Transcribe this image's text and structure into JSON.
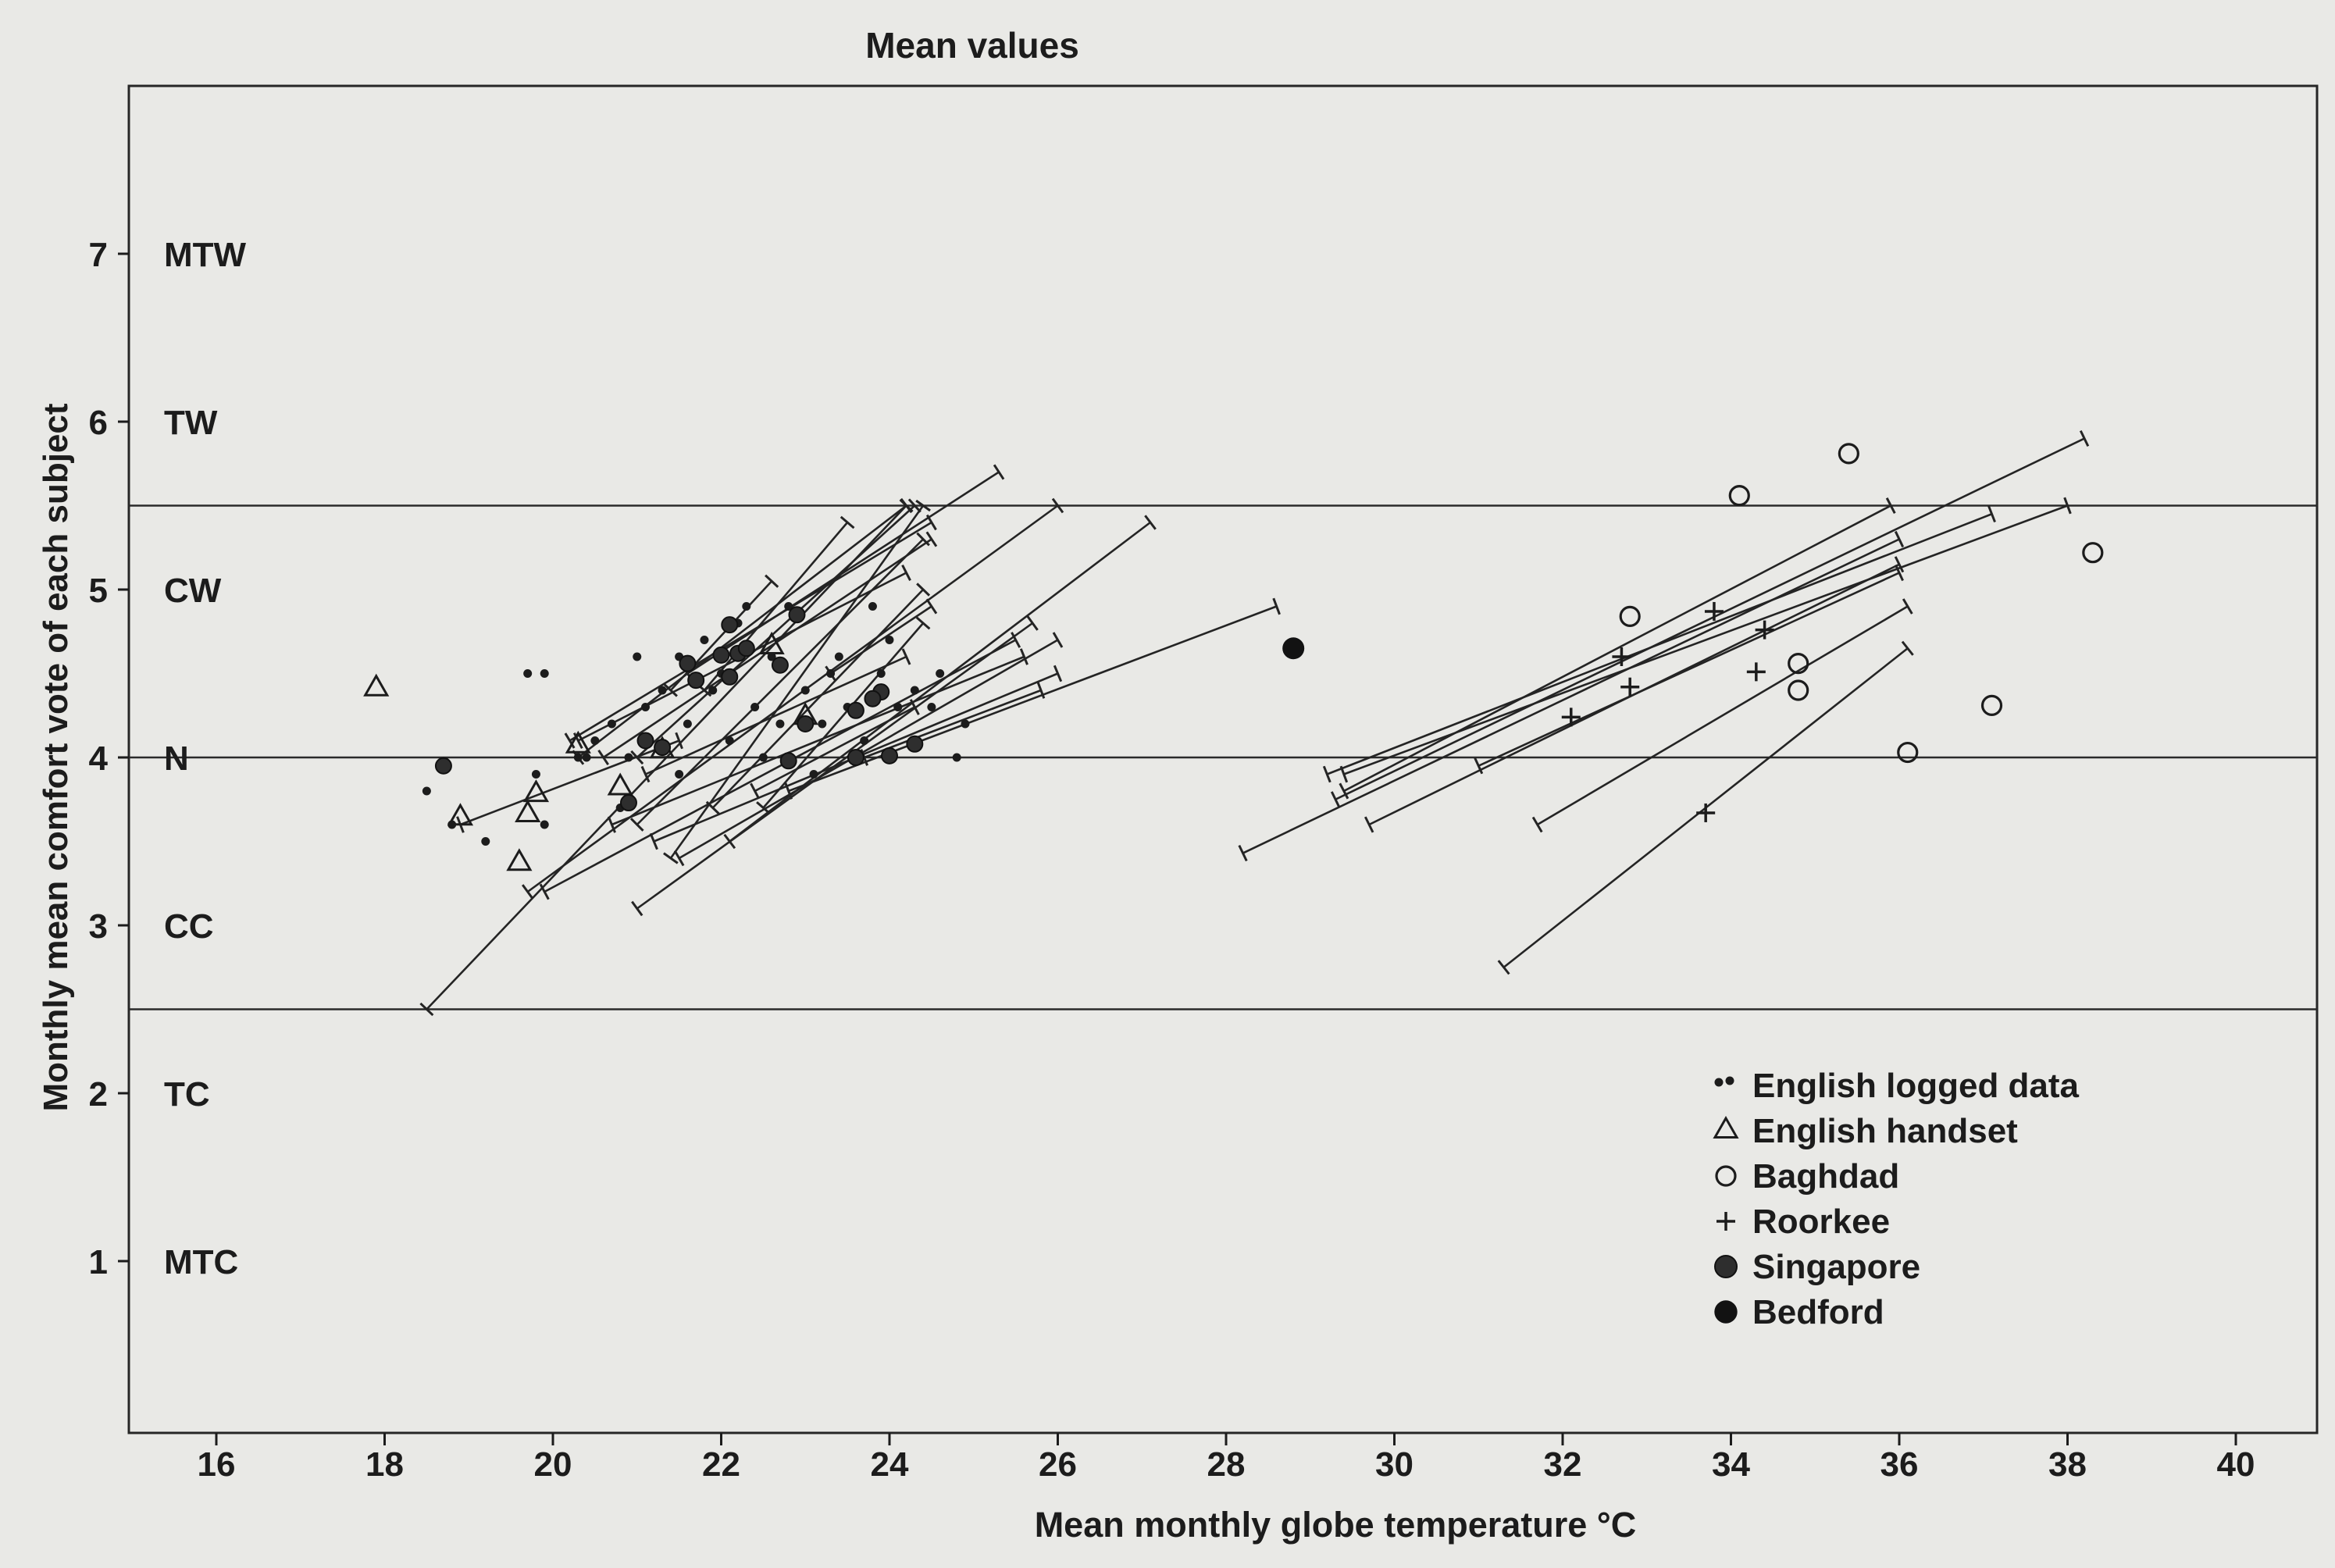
{
  "chart_data": {
    "type": "scatter",
    "title": "Mean values",
    "xlabel": "Mean monthly globe temperature °C",
    "ylabel": "Monthly mean comfort vote of each subject",
    "xlim": [
      15,
      41
    ],
    "ylim": [
      0,
      8
    ],
    "x_ticks": [
      16,
      18,
      20,
      22,
      24,
      26,
      28,
      30,
      32,
      34,
      36,
      38,
      40
    ],
    "y_ticks": [
      1,
      2,
      3,
      4,
      5,
      6,
      7
    ],
    "y_category_labels": [
      {
        "y": 7,
        "label": "MTW"
      },
      {
        "y": 6,
        "label": "TW"
      },
      {
        "y": 5,
        "label": "CW"
      },
      {
        "y": 4,
        "label": "N"
      },
      {
        "y": 3,
        "label": "CC"
      },
      {
        "y": 2,
        "label": "TC"
      },
      {
        "y": 1,
        "label": "MTC"
      }
    ],
    "reference_lines": [
      5.5,
      4,
      2.5
    ],
    "legend_position": "bottom-right",
    "legend": [
      {
        "marker": "dot",
        "label": "English logged data"
      },
      {
        "marker": "triangle",
        "label": "English handset"
      },
      {
        "marker": "circle",
        "label": "Baghdad"
      },
      {
        "marker": "plus",
        "label": "Roorkee"
      },
      {
        "marker": "singapore",
        "label": "Singapore"
      },
      {
        "marker": "bedford",
        "label": "Bedford"
      }
    ],
    "series": [
      {
        "name": "English logged data",
        "marker": "dot",
        "points": [
          [
            18.5,
            3.8
          ],
          [
            18.8,
            3.6
          ],
          [
            19.2,
            3.5
          ],
          [
            19.9,
            3.6
          ],
          [
            19.8,
            3.9
          ],
          [
            19.7,
            4.5
          ],
          [
            19.9,
            4.5
          ],
          [
            20.3,
            4.0
          ],
          [
            20.5,
            4.1
          ],
          [
            20.7,
            4.2
          ],
          [
            20.9,
            4.0
          ],
          [
            21.1,
            4.3
          ],
          [
            21.3,
            4.4
          ],
          [
            21.5,
            4.6
          ],
          [
            21.6,
            4.2
          ],
          [
            21.8,
            4.7
          ],
          [
            22.0,
            4.5
          ],
          [
            22.2,
            4.8
          ],
          [
            22.4,
            4.3
          ],
          [
            22.6,
            4.6
          ],
          [
            22.8,
            4.9
          ],
          [
            23.0,
            4.4
          ],
          [
            23.2,
            4.2
          ],
          [
            23.4,
            4.6
          ],
          [
            23.5,
            4.3
          ],
          [
            23.7,
            4.1
          ],
          [
            23.9,
            4.5
          ],
          [
            24.1,
            4.3
          ],
          [
            24.3,
            4.4
          ],
          [
            24.5,
            4.3
          ],
          [
            24.6,
            4.5
          ],
          [
            24.8,
            4.0
          ],
          [
            24.9,
            4.2
          ],
          [
            22.1,
            4.1
          ],
          [
            22.5,
            4.0
          ],
          [
            23.1,
            3.9
          ],
          [
            21.5,
            3.9
          ],
          [
            20.8,
            3.7
          ],
          [
            21.0,
            4.6
          ],
          [
            22.3,
            4.9
          ],
          [
            23.8,
            4.9
          ],
          [
            24.0,
            4.7
          ],
          [
            21.9,
            4.4
          ],
          [
            22.7,
            4.2
          ],
          [
            23.3,
            4.5
          ],
          [
            20.4,
            4.0
          ]
        ]
      },
      {
        "name": "English handset",
        "marker": "triangle",
        "points": [
          [
            17.9,
            4.42
          ],
          [
            18.9,
            3.65
          ],
          [
            19.6,
            3.38
          ],
          [
            19.7,
            3.67
          ],
          [
            19.8,
            3.79
          ],
          [
            20.3,
            4.08
          ],
          [
            20.8,
            3.83
          ],
          [
            21.3,
            4.05
          ],
          [
            22.6,
            4.67
          ],
          [
            23.0,
            4.25
          ]
        ]
      },
      {
        "name": "Baghdad",
        "marker": "circle",
        "points": [
          [
            32.8,
            4.84
          ],
          [
            34.1,
            5.56
          ],
          [
            35.4,
            5.81
          ],
          [
            38.3,
            5.22
          ],
          [
            34.8,
            4.56
          ],
          [
            34.8,
            4.4
          ],
          [
            37.1,
            4.31
          ],
          [
            36.1,
            4.03
          ]
        ]
      },
      {
        "name": "Roorkee",
        "marker": "plus",
        "points": [
          [
            32.7,
            4.6
          ],
          [
            33.8,
            4.87
          ],
          [
            32.8,
            4.42
          ],
          [
            32.1,
            4.24
          ],
          [
            34.4,
            4.76
          ],
          [
            34.3,
            4.51
          ],
          [
            33.7,
            3.67
          ]
        ]
      },
      {
        "name": "Singapore",
        "marker": "singapore",
        "points": [
          [
            18.7,
            3.95
          ],
          [
            20.9,
            3.73
          ],
          [
            21.1,
            4.1
          ],
          [
            21.3,
            4.06
          ],
          [
            21.6,
            4.56
          ],
          [
            22.0,
            4.61
          ],
          [
            22.2,
            4.62
          ],
          [
            22.3,
            4.65
          ],
          [
            22.1,
            4.48
          ],
          [
            22.7,
            4.55
          ],
          [
            22.8,
            3.98
          ],
          [
            22.9,
            4.85
          ],
          [
            23.0,
            4.2
          ],
          [
            23.6,
            4.28
          ],
          [
            23.9,
            4.39
          ],
          [
            23.6,
            4.0
          ],
          [
            24.0,
            4.01
          ],
          [
            24.3,
            4.08
          ],
          [
            21.7,
            4.46
          ],
          [
            22.1,
            4.79
          ],
          [
            23.8,
            4.35
          ]
        ]
      },
      {
        "name": "Bedford",
        "marker": "bedford",
        "points": [
          [
            28.8,
            4.65
          ]
        ]
      }
    ],
    "regression_segments": [
      [
        18.5,
        2.5,
        24.2,
        5.5
      ],
      [
        19.7,
        3.2,
        26.0,
        5.5
      ],
      [
        19.9,
        3.2,
        25.5,
        4.7
      ],
      [
        20.7,
        3.6,
        25.6,
        4.6
      ],
      [
        21.2,
        3.5,
        26.0,
        4.5
      ],
      [
        21.0,
        3.1,
        25.7,
        4.8
      ],
      [
        21.5,
        3.4,
        26.0,
        4.7
      ],
      [
        22.1,
        3.5,
        27.1,
        5.4
      ],
      [
        22.8,
        3.8,
        28.6,
        4.9
      ],
      [
        21.4,
        3.4,
        24.4,
        5.5
      ],
      [
        20.3,
        4.0,
        24.2,
        5.5
      ],
      [
        21.0,
        4.0,
        24.3,
        5.5
      ],
      [
        21.8,
        4.4,
        23.5,
        5.4
      ],
      [
        20.2,
        4.1,
        24.5,
        5.4
      ],
      [
        21.0,
        3.6,
        24.4,
        5.3
      ],
      [
        21.6,
        4.5,
        25.3,
        5.7
      ],
      [
        21.9,
        3.7,
        24.4,
        5.0
      ],
      [
        22.5,
        3.7,
        24.4,
        4.8
      ],
      [
        23.7,
        4.0,
        25.8,
        4.4
      ],
      [
        20.3,
        4.1,
        24.2,
        5.1
      ],
      [
        20.6,
        4.0,
        24.5,
        5.3
      ],
      [
        21.4,
        4.4,
        22.6,
        5.05
      ],
      [
        23.3,
        4.5,
        24.5,
        4.9
      ],
      [
        21.1,
        3.9,
        24.2,
        4.6
      ],
      [
        22.4,
        3.8,
        24.3,
        4.3
      ],
      [
        18.9,
        3.6,
        21.5,
        4.1
      ],
      [
        28.2,
        3.43,
        36.0,
        5.3
      ],
      [
        29.4,
        3.8,
        35.9,
        5.5
      ],
      [
        29.2,
        3.9,
        37.1,
        5.45
      ],
      [
        29.4,
        3.9,
        38.0,
        5.5
      ],
      [
        29.7,
        3.6,
        36.0,
        5.15
      ],
      [
        31.0,
        3.95,
        36.0,
        5.1
      ],
      [
        31.7,
        3.6,
        36.1,
        4.9
      ],
      [
        31.3,
        2.75,
        36.1,
        4.65
      ],
      [
        29.3,
        3.75,
        38.2,
        5.9
      ]
    ]
  }
}
